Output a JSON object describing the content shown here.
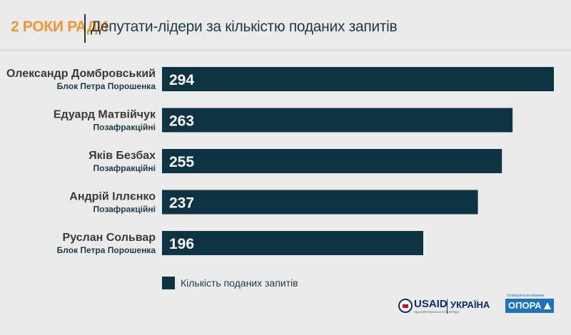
{
  "header": {
    "tag": "2 РОКИ РАДИ",
    "title": "Депутати-лідери за кількістю поданих запитів"
  },
  "colors": {
    "accent": "#f0962d",
    "bar": "#0e3443",
    "text_dark": "#1d3a48"
  },
  "chart_data": {
    "type": "bar",
    "orientation": "horizontal",
    "title": "Депутати-лідери за кількістю поданих запитів",
    "categories": [
      "Олександр Домбровський",
      "Едуард Матвійчук",
      "Яків Безбах",
      "Андрій Іллєнко",
      "Руслан Сольвар"
    ],
    "subcategories": [
      "Блок Петра Порошенка",
      "Позафракційні",
      "Позафракційні",
      "Позафракційні",
      "Блок Петра Порошенка"
    ],
    "series": [
      {
        "name": "Кількість поданих запитів",
        "values": [
          294,
          263,
          255,
          237,
          196
        ]
      }
    ],
    "xlim": [
      0,
      294
    ],
    "data_labels": true,
    "grid": false,
    "legend_position": "bottom"
  },
  "legend": {
    "label": "Кількість поданих запитів"
  },
  "logos": {
    "usaid": "USAID",
    "usaid_sub": "ВІД АМЕРИКАНСЬКОГО НАРОДУ",
    "ukraine": "УКРАЇНА",
    "opora_tag": "Громадянська мережа",
    "opora": "ОПОРА"
  }
}
